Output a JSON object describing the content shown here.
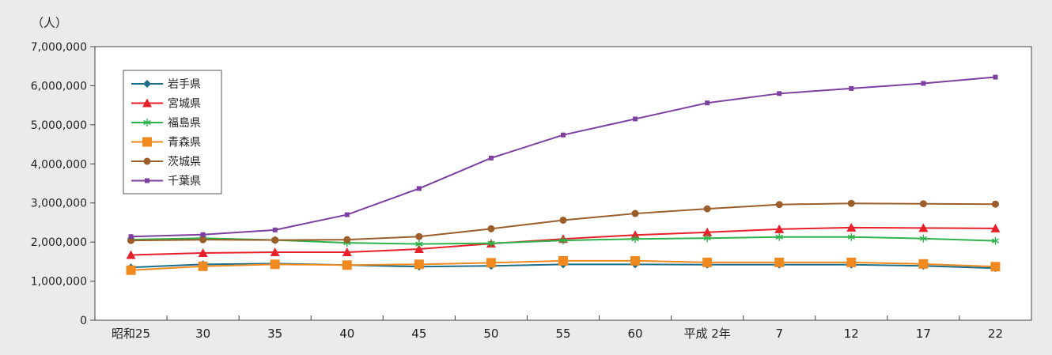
{
  "chart_data": {
    "type": "line",
    "y_unit_label": "（人）",
    "categories": [
      "昭和25",
      "30",
      "35",
      "40",
      "45",
      "50",
      "55",
      "60",
      "平成 2年",
      "7",
      "12",
      "17",
      "22"
    ],
    "ylim": [
      0,
      7000000
    ],
    "y_ticks": [
      0,
      1000000,
      2000000,
      3000000,
      4000000,
      5000000,
      6000000,
      7000000
    ],
    "y_tick_labels": [
      "0",
      "1,000,000",
      "2,000,000",
      "3,000,000",
      "4,000,000",
      "5,000,000",
      "6,000,000",
      "7,000,000"
    ],
    "grid": false,
    "legend_position": "top-left",
    "series": [
      {
        "name": "岩手県",
        "color": "#1a6e8a",
        "marker": "diamond",
        "values": [
          1350000,
          1430000,
          1450000,
          1410000,
          1370000,
          1390000,
          1430000,
          1430000,
          1420000,
          1420000,
          1420000,
          1390000,
          1330000
        ]
      },
      {
        "name": "宮城県",
        "color": "#e8202a",
        "marker": "triangle",
        "values": [
          1670000,
          1720000,
          1740000,
          1740000,
          1820000,
          1960000,
          2080000,
          2180000,
          2250000,
          2330000,
          2370000,
          2360000,
          2350000
        ]
      },
      {
        "name": "福島県",
        "color": "#2db34a",
        "marker": "asterisk",
        "values": [
          2060000,
          2100000,
          2050000,
          1980000,
          1950000,
          1970000,
          2040000,
          2080000,
          2100000,
          2130000,
          2130000,
          2090000,
          2030000
        ]
      },
      {
        "name": "青森県",
        "color": "#f08a1e",
        "marker": "square",
        "values": [
          1280000,
          1380000,
          1430000,
          1410000,
          1430000,
          1470000,
          1520000,
          1520000,
          1480000,
          1480000,
          1480000,
          1440000,
          1370000
        ]
      },
      {
        "name": "茨城県",
        "color": "#9b5e2a",
        "marker": "circle",
        "values": [
          2040000,
          2060000,
          2050000,
          2060000,
          2140000,
          2340000,
          2560000,
          2730000,
          2850000,
          2960000,
          2990000,
          2980000,
          2970000
        ]
      },
      {
        "name": "千葉県",
        "color": "#7d3fa0",
        "marker": "smallsquare",
        "values": [
          2140000,
          2190000,
          2310000,
          2700000,
          3370000,
          4150000,
          4740000,
          5150000,
          5560000,
          5800000,
          5930000,
          6060000,
          6220000
        ]
      }
    ]
  }
}
